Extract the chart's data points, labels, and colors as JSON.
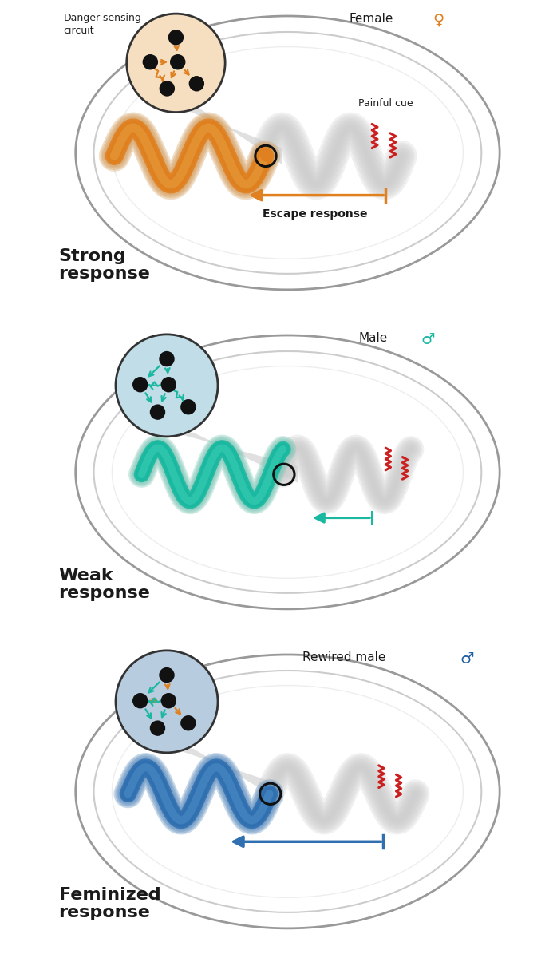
{
  "panel1": {
    "bg_color": "#f5dfc0",
    "title": "Female",
    "sex_symbol": "♀",
    "sex_symbol_color": "#e08020",
    "response_label": "Strong\nresponse",
    "circuit_arrow_color": "#e08020",
    "worm_color": "#e08020",
    "worm_highlight": "#e8a040",
    "worm_shadow_color": "#d4a060",
    "arrow_color": "#e08020",
    "escape_label": "Escape response",
    "painful_label": "Painful cue",
    "circuit_fill": "#f5dfc0",
    "circuit_style": "female"
  },
  "panel2": {
    "bg_color": "#c0dde8",
    "title": "Male",
    "sex_symbol": "♂",
    "sex_symbol_color": "#1ab8a0",
    "response_label": "Weak\nresponse",
    "circuit_arrow_color": "#1ab8a0",
    "worm_color": "#1ab8a0",
    "worm_highlight": "#40d0b8",
    "worm_shadow_color": "#80c8b8",
    "arrow_color": "#1ab8a0",
    "circuit_fill": "#c0dde8",
    "circuit_style": "male"
  },
  "panel3": {
    "bg_color": "#b8cce0",
    "title": "Rewired male",
    "sex_symbol": "♂",
    "sex_symbol_color": "#2060a0",
    "response_label": "Feminized\nresponse",
    "circuit_arrow_color": "#1ab8a0",
    "circuit_arrow_color2": "#e08020",
    "worm_color": "#3070b0",
    "worm_highlight": "#5090c8",
    "worm_shadow_color": "#6090c0",
    "arrow_color": "#3070b0",
    "circuit_fill": "#b8cce0",
    "circuit_style": "rewired"
  },
  "danger_sensing_label": "Danger-sensing\ncircuit",
  "node_color": "#111111",
  "painful_color": "#cc2020",
  "dish_edge_color": "#a0a0a0",
  "shadow_color": "#cccccc"
}
